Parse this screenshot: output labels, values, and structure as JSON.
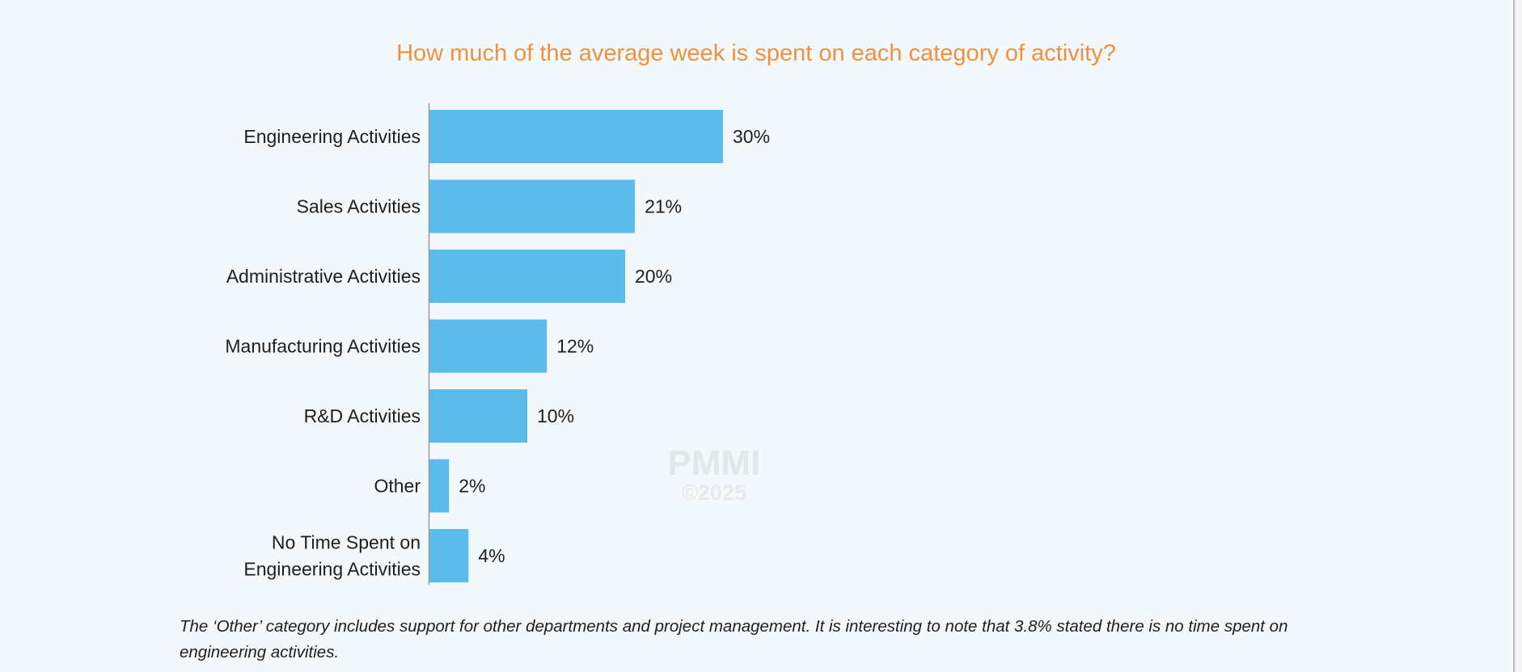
{
  "chart_data": {
    "type": "bar",
    "orientation": "horizontal",
    "title": "How much of the average week is spent on each category of activity?",
    "categories": [
      "Engineering Activities",
      "Sales Activities",
      "Administrative Activities",
      "Manufacturing Activities",
      "R&D Activities",
      "Other",
      "No Time Spent on Engineering Activities"
    ],
    "category_lines": [
      [
        "Engineering Activities"
      ],
      [
        "Sales Activities"
      ],
      [
        "Administrative Activities"
      ],
      [
        "Manufacturing Activities"
      ],
      [
        "R&D Activities"
      ],
      [
        "Other"
      ],
      [
        "No Time Spent on",
        "Engineering Activities"
      ]
    ],
    "values": [
      30,
      21,
      20,
      12,
      10,
      2,
      4
    ],
    "value_labels": [
      "30%",
      "21%",
      "20%",
      "12%",
      "10%",
      "2%",
      "4%"
    ],
    "xlim": [
      0,
      100
    ],
    "grid": false,
    "bar_color": "#5bbbea",
    "title_color": "#f0913f"
  },
  "watermark": {
    "brand": "PMMI",
    "copyright": "©2025"
  },
  "footnote": "The ‘Other’ category includes support for other departments and project management. It is interesting to note that 3.8% stated there is no time spent on engineering activities."
}
